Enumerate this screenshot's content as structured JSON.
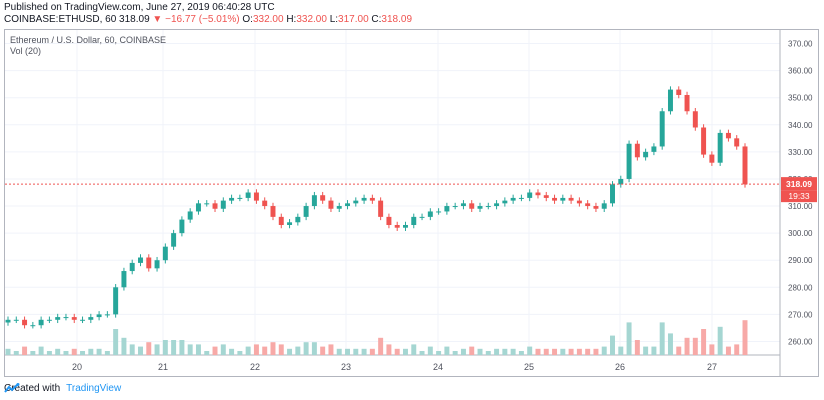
{
  "header": {
    "published": "Published on TradingView.com, June 27, 2019 06:40:28 UTC",
    "symbol": "COINBASE:ETHUSD, 60",
    "last": "318.09",
    "change": "−16.77 (−5.01%)",
    "o_label": "O:",
    "o_value": "332.00",
    "h_label": "H:",
    "h_value": "332.00",
    "l_label": "L:",
    "l_value": "317.00",
    "c_label": "C:",
    "c_value": "318.09"
  },
  "legend": {
    "title": "Ethereum / U.S. Dollar, 60, COINBASE",
    "volume": "Vol (20)"
  },
  "price_tag": {
    "price": "318.09",
    "countdown": "19:33"
  },
  "footer": {
    "created_with": "Created with",
    "brand": "TradingView"
  },
  "colors": {
    "up": "#26a69a",
    "down": "#ef5350",
    "vol_up": "#a5d6d2",
    "vol_down": "#f7a9a7",
    "grid": "#f0f3fa"
  },
  "chart_data": {
    "type": "candlestick",
    "ylim": [
      255,
      375
    ],
    "y_ticks": [
      260,
      270,
      280,
      290,
      300,
      310,
      320,
      330,
      340,
      350,
      360,
      370
    ],
    "x_ticks": [
      "20",
      "21",
      "22",
      "23",
      "24",
      "25",
      "26",
      "27"
    ],
    "last_price": 318.09,
    "series": [
      {
        "name": "20",
        "close": [
          268,
          268,
          266,
          266,
          268,
          268,
          269,
          269,
          268,
          268,
          269,
          270
        ]
      },
      {
        "name": "21",
        "close": [
          270,
          280,
          286,
          289,
          291,
          287,
          290,
          295,
          300,
          305,
          308,
          311
        ]
      },
      {
        "name": "22",
        "close": [
          311,
          309,
          312,
          313,
          313,
          315,
          312,
          310,
          306,
          303,
          304,
          306
        ]
      },
      {
        "name": "23",
        "close": [
          310,
          314,
          312,
          309,
          310,
          311,
          312,
          313,
          312,
          306,
          303,
          302
        ]
      },
      {
        "name": "24",
        "close": [
          303,
          306,
          306,
          308,
          308,
          310,
          310,
          311,
          309,
          310,
          310,
          311
        ]
      },
      {
        "name": "25",
        "close": [
          312,
          313,
          313,
          315,
          314,
          313,
          312,
          313,
          312,
          311,
          310,
          309
        ]
      },
      {
        "name": "26",
        "close": [
          311,
          318,
          320,
          333,
          328,
          330,
          332,
          345,
          353,
          351,
          345,
          339
        ]
      },
      {
        "name": "27",
        "close": [
          329,
          326,
          337,
          335,
          332,
          318
        ]
      }
    ]
  }
}
